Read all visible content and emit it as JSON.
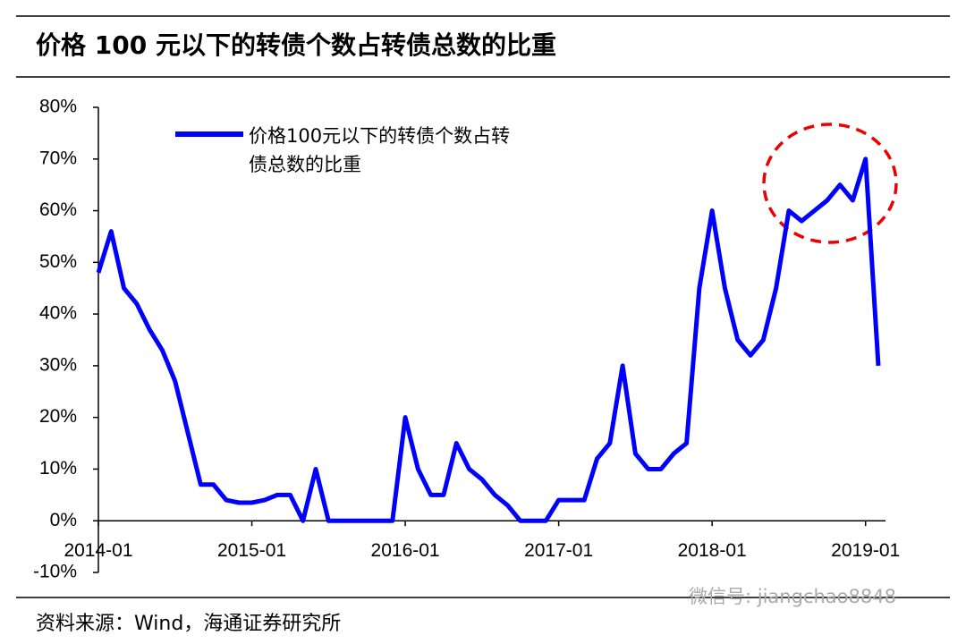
{
  "chart_data": {
    "type": "line",
    "title": "价格 100 元以下的转债个数占转债总数的比重",
    "source": "资料来源：Wind，海通证券研究所",
    "watermark": "微信号: jiangchao8848",
    "x": [
      "2014-01",
      "2014-02",
      "2014-03",
      "2014-04",
      "2014-05",
      "2014-06",
      "2014-07",
      "2014-08",
      "2014-09",
      "2014-10",
      "2014-11",
      "2014-12",
      "2015-01",
      "2015-02",
      "2015-03",
      "2015-04",
      "2015-05",
      "2015-06",
      "2015-07",
      "2015-08",
      "2015-09",
      "2015-10",
      "2015-11",
      "2015-12",
      "2016-01",
      "2016-02",
      "2016-03",
      "2016-04",
      "2016-05",
      "2016-06",
      "2016-07",
      "2016-08",
      "2016-09",
      "2016-10",
      "2016-11",
      "2016-12",
      "2017-01",
      "2017-02",
      "2017-03",
      "2017-04",
      "2017-05",
      "2017-06",
      "2017-07",
      "2017-08",
      "2017-09",
      "2017-10",
      "2017-11",
      "2017-12",
      "2018-01",
      "2018-02",
      "2018-03",
      "2018-04",
      "2018-05",
      "2018-06",
      "2018-07",
      "2018-08",
      "2018-09",
      "2018-10",
      "2018-11",
      "2018-12",
      "2019-01",
      "2019-02"
    ],
    "series": [
      {
        "name": "价格100元以下的转债个数占转债总数的比重",
        "color": "#0000ff",
        "values": [
          48,
          56,
          45,
          42,
          37,
          33,
          27,
          17,
          7,
          7,
          4,
          3.5,
          3.5,
          4,
          5,
          5,
          0,
          10,
          0,
          0,
          0,
          0,
          0,
          0,
          20,
          10,
          5,
          5,
          15,
          10,
          8,
          5,
          3,
          0,
          0,
          0,
          4,
          4,
          4,
          12,
          15,
          30,
          13,
          10,
          10,
          13,
          15,
          45,
          60,
          45,
          35,
          32,
          35,
          45,
          60,
          58,
          60,
          62,
          65,
          62,
          70,
          30
        ]
      }
    ],
    "xlim": [
      "2014-01",
      "2019-02"
    ],
    "xticks": [
      "2014-01",
      "2015-01",
      "2016-01",
      "2017-01",
      "2018-01",
      "2019-01"
    ],
    "ylim": [
      -10,
      80
    ],
    "yticks": [
      {
        "value": -10,
        "label": "-10%"
      },
      {
        "value": 0,
        "label": "0%"
      },
      {
        "value": 10,
        "label": "10%"
      },
      {
        "value": 20,
        "label": "20%"
      },
      {
        "value": 30,
        "label": "30%"
      },
      {
        "value": 40,
        "label": "40%"
      },
      {
        "value": 50,
        "label": "50%"
      },
      {
        "value": 60,
        "label": "60%"
      },
      {
        "value": 70,
        "label": "70%"
      },
      {
        "value": 80,
        "label": "80%"
      }
    ],
    "grid": false
  }
}
